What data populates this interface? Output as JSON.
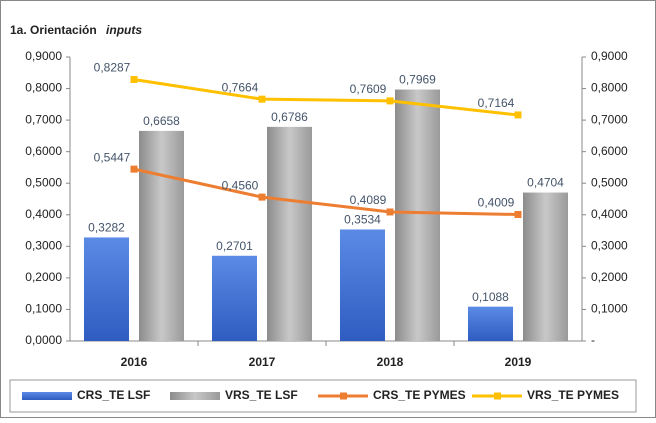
{
  "chart_data": {
    "type": "bar_line",
    "title": "1a. Orientación",
    "title_italic": "inputs",
    "categories": [
      "2016",
      "2017",
      "2018",
      "2019"
    ],
    "series": [
      {
        "name": "CRS_TE LSF",
        "type": "bar",
        "color": "#3f6fd0",
        "values": [
          0.3282,
          0.2701,
          0.3534,
          0.1088
        ],
        "value_labels": [
          "0,3282",
          "0,2701",
          "0,3534",
          "0,1088"
        ]
      },
      {
        "name": "VRS_TE LSF",
        "type": "bar",
        "color": "#a6a6a6",
        "values": [
          0.6658,
          0.6786,
          0.7969,
          0.4704
        ],
        "value_labels": [
          "0,6658",
          "0,6786",
          "0,7969",
          "0,4704"
        ]
      },
      {
        "name": "CRS_TE PYMES",
        "type": "line",
        "color": "#ed7d31",
        "values": [
          0.5447,
          0.456,
          0.4089,
          0.4009
        ],
        "value_labels": [
          "0,5447",
          "0,4560",
          "0,4089",
          "0,4009"
        ]
      },
      {
        "name": "VRS_TE PYMES",
        "type": "line",
        "color": "#ffc000",
        "values": [
          0.8287,
          0.7664,
          0.7609,
          0.7164
        ],
        "value_labels": [
          "0,8287",
          "0,7664",
          "0,7609",
          "0,7164"
        ]
      }
    ],
    "ylim": [
      0,
      0.9
    ],
    "yticks": [
      {
        "value": 0,
        "label": "0,0000"
      },
      {
        "value": 0.1,
        "label": "0,1000"
      },
      {
        "value": 0.2,
        "label": "0,2000"
      },
      {
        "value": 0.3,
        "label": "0,3000"
      },
      {
        "value": 0.4,
        "label": "0,4000"
      },
      {
        "value": 0.5,
        "label": "0,5000"
      },
      {
        "value": 0.6,
        "label": "0,6000"
      },
      {
        "value": 0.7,
        "label": "0,7000"
      },
      {
        "value": 0.8,
        "label": "0,8000"
      },
      {
        "value": 0.9,
        "label": "0,9000"
      }
    ],
    "y2lim": [
      0,
      0.9
    ],
    "y2ticks": [
      {
        "value": 0,
        "label": "-"
      },
      {
        "value": 0.1,
        "label": "0,1000"
      },
      {
        "value": 0.2,
        "label": "0,2000"
      },
      {
        "value": 0.3,
        "label": "0,3000"
      },
      {
        "value": 0.4,
        "label": "0,4000"
      },
      {
        "value": 0.5,
        "label": "0,5000"
      },
      {
        "value": 0.6,
        "label": "0,6000"
      },
      {
        "value": 0.7,
        "label": "0,7000"
      },
      {
        "value": 0.8,
        "label": "0,8000"
      },
      {
        "value": 0.9,
        "label": "0,9000"
      }
    ],
    "grid": false,
    "legend": "bottom"
  }
}
